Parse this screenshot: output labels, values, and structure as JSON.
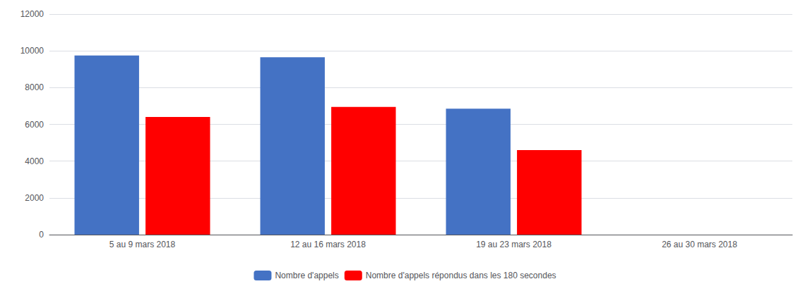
{
  "chart_data": {
    "type": "bar",
    "categories": [
      "5 au 9 mars 2018",
      "12 au 16 mars 2018",
      "19 au 23 mars 2018",
      "26 au 30 mars 2018"
    ],
    "series": [
      {
        "name": "Nombre d'appels",
        "color": "#4472C4",
        "values": [
          9750,
          9650,
          6850,
          0
        ]
      },
      {
        "name": "Nombre d'appels répondus dans les 180 secondes",
        "color": "#FF0000",
        "values": [
          6400,
          6950,
          4600,
          0
        ]
      }
    ],
    "ylim": [
      0,
      12000
    ],
    "yticks": [
      0,
      2000,
      4000,
      6000,
      8000,
      10000,
      12000
    ],
    "grid": true,
    "legend": "bottom"
  }
}
